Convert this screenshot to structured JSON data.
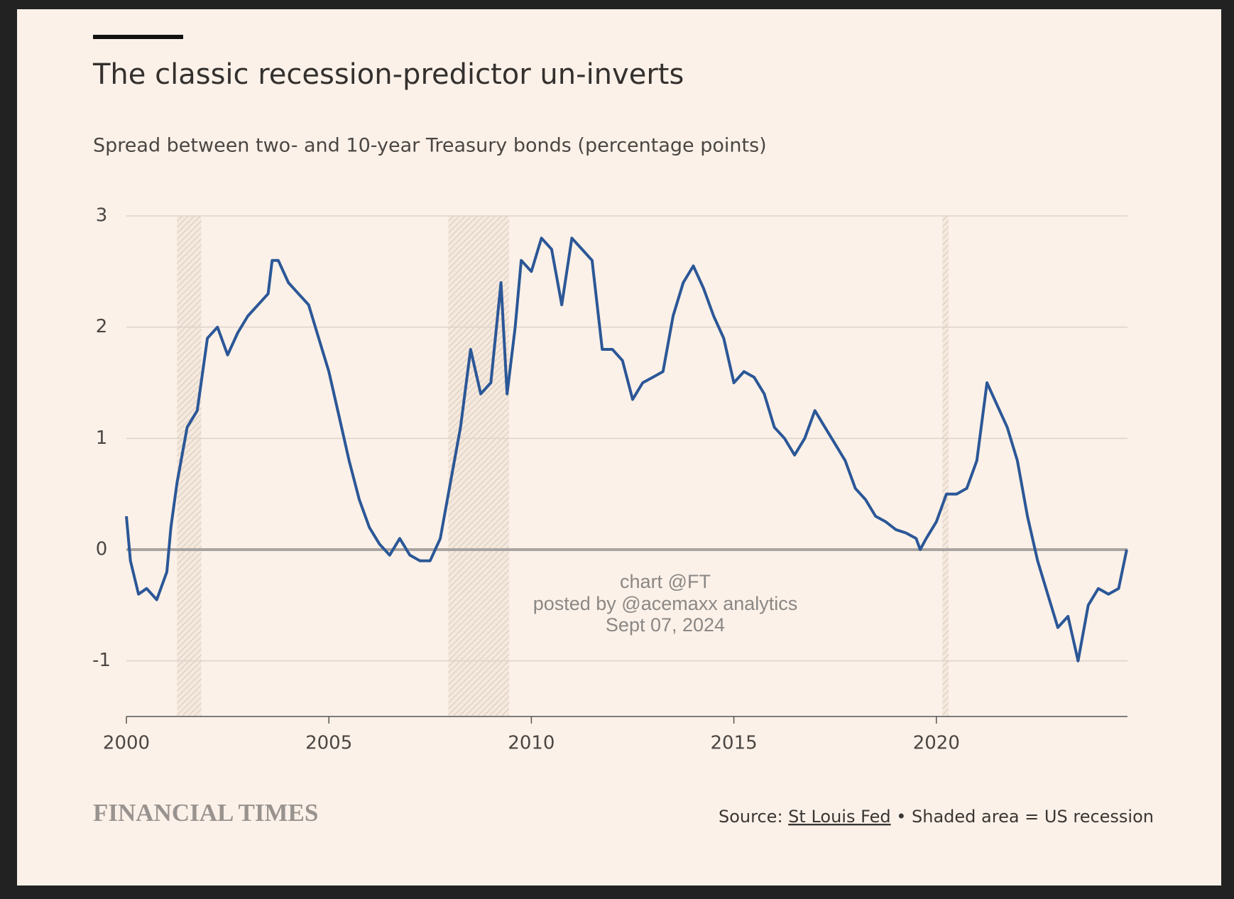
{
  "chart_data": {
    "type": "line",
    "title": "The classic recession-predictor un-inverts",
    "subtitle": "Spread between two- and 10-year Treasury bonds (percentage points)",
    "watermark": [
      "chart @FT",
      "posted by @acemaxx analytics",
      "Sept 07, 2024"
    ],
    "brand": "FINANCIAL TIMES",
    "source_label": "Source:",
    "source_link": "St Louis Fed",
    "note": "• Shaded area = US recession",
    "color": "#2b5797",
    "xlim": [
      2000,
      2024.72
    ],
    "xticks": [
      2000,
      2005,
      2010,
      2015,
      2020
    ],
    "ylim": [
      -1.5,
      3
    ],
    "yticks": [
      3,
      2,
      1,
      0,
      -1
    ],
    "grid": true,
    "recessions": [
      [
        2001.25,
        2001.85
      ],
      [
        2007.95,
        2009.45
      ],
      [
        2020.15,
        2020.3
      ]
    ],
    "x": [
      2000,
      2000.1,
      2000.3,
      2000.5,
      2000.75,
      2001,
      2001.1,
      2001.25,
      2001.5,
      2001.75,
      2002,
      2002.25,
      2002.5,
      2002.75,
      2003,
      2003.25,
      2003.5,
      2003.6,
      2003.75,
      2004,
      2004.25,
      2004.5,
      2004.75,
      2005,
      2005.25,
      2005.5,
      2005.75,
      2006,
      2006.25,
      2006.5,
      2006.75,
      2007,
      2007.25,
      2007.5,
      2007.75,
      2008,
      2008.25,
      2008.5,
      2008.75,
      2009,
      2009.25,
      2009.4,
      2009.6,
      2009.75,
      2010,
      2010.25,
      2010.5,
      2010.75,
      2011,
      2011.25,
      2011.5,
      2011.75,
      2012,
      2012.25,
      2012.5,
      2012.75,
      2013,
      2013.25,
      2013.5,
      2013.75,
      2014,
      2014.25,
      2014.5,
      2014.75,
      2015,
      2015.25,
      2015.5,
      2015.75,
      2016,
      2016.25,
      2016.5,
      2016.75,
      2017,
      2017.25,
      2017.5,
      2017.75,
      2018,
      2018.25,
      2018.5,
      2018.75,
      2019,
      2019.25,
      2019.5,
      2019.6,
      2019.75,
      2020,
      2020.25,
      2020.5,
      2020.75,
      2021,
      2021.25,
      2021.5,
      2021.75,
      2022,
      2022.25,
      2022.5,
      2022.75,
      2023,
      2023.25,
      2023.5,
      2023.75,
      2024,
      2024.25,
      2024.5,
      2024.7
    ],
    "values": [
      0.3,
      -0.1,
      -0.4,
      -0.35,
      -0.45,
      -0.2,
      0.2,
      0.6,
      1.1,
      1.25,
      1.9,
      2.0,
      1.75,
      1.95,
      2.1,
      2.2,
      2.3,
      2.6,
      2.6,
      2.4,
      2.3,
      2.2,
      1.9,
      1.6,
      1.2,
      0.8,
      0.45,
      0.2,
      0.05,
      -0.05,
      0.1,
      -0.05,
      -0.1,
      -0.1,
      0.1,
      0.6,
      1.1,
      1.8,
      1.4,
      1.5,
      2.4,
      1.4,
      2.0,
      2.6,
      2.5,
      2.8,
      2.7,
      2.2,
      2.8,
      2.7,
      2.6,
      1.8,
      1.8,
      1.7,
      1.35,
      1.5,
      1.55,
      1.6,
      2.1,
      2.4,
      2.55,
      2.35,
      2.1,
      1.9,
      1.5,
      1.6,
      1.55,
      1.4,
      1.1,
      1.0,
      0.85,
      1.0,
      1.25,
      1.1,
      0.95,
      0.8,
      0.55,
      0.45,
      0.3,
      0.25,
      0.18,
      0.15,
      0.1,
      0.0,
      0.1,
      0.25,
      0.5,
      0.5,
      0.55,
      0.8,
      1.5,
      1.3,
      1.1,
      0.8,
      0.3,
      -0.1,
      -0.4,
      -0.7,
      -0.6,
      -1.0,
      -0.5,
      -0.35,
      -0.4,
      -0.35,
      0.0
    ]
  }
}
